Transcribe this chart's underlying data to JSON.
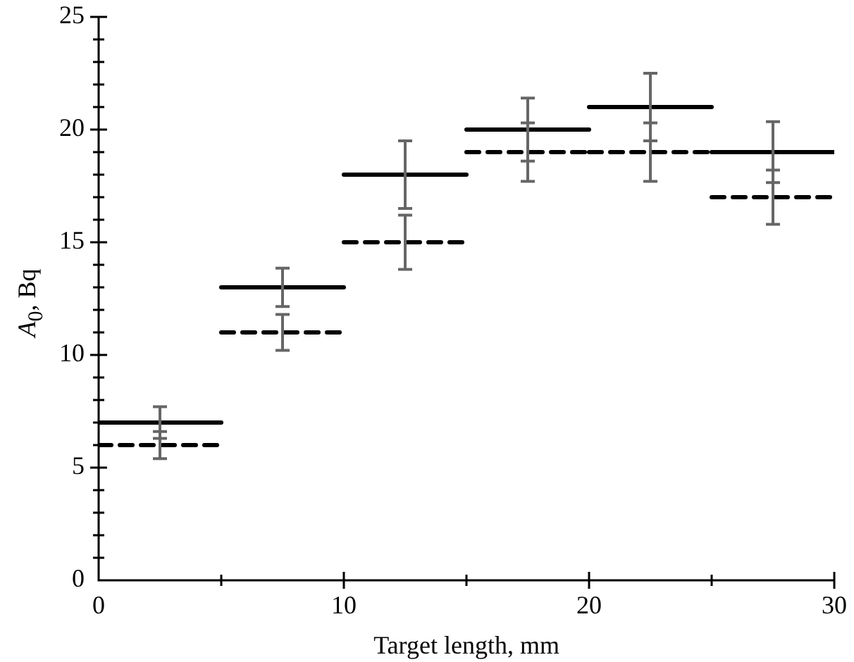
{
  "chart_data": {
    "type": "line",
    "xlabel": "Target length, mm",
    "ylabel": "A$_{0}$, Bq",
    "series": [
      {
        "color": "#000000",
        "line_style": "solid",
        "x": [
          0,
          2.5,
          5,
          null,
          5,
          7.5,
          10,
          null,
          10,
          12.5,
          15,
          null,
          15,
          17.5,
          20,
          null,
          20,
          22.5,
          25,
          null,
          25,
          27.5,
          30
        ],
        "values": [
          7,
          7,
          7,
          null,
          13,
          13,
          13,
          null,
          18,
          18,
          18,
          null,
          20,
          20,
          20,
          null,
          21,
          21,
          21,
          null,
          19,
          19,
          19
        ],
        "errors": [
          null,
          0.7,
          null,
          null,
          null,
          0.85,
          null,
          null,
          null,
          1.5,
          null,
          null,
          null,
          1.4,
          null,
          null,
          null,
          1.5,
          null,
          null,
          null,
          1.35,
          null
        ]
      },
      {
        "color": "#000000",
        "line_style": "dashed",
        "x": [
          0,
          2.5,
          5,
          null,
          5,
          7.5,
          10,
          null,
          10,
          12.5,
          15,
          null,
          15,
          17.5,
          20,
          null,
          20,
          22.5,
          25,
          null,
          25,
          27.5,
          30
        ],
        "values": [
          6,
          6,
          6,
          null,
          11,
          11,
          11,
          null,
          15,
          15,
          15,
          null,
          19,
          19,
          19,
          null,
          19,
          19,
          19,
          null,
          17,
          17,
          17
        ],
        "errors": [
          null,
          0.6,
          null,
          null,
          null,
          0.8,
          null,
          null,
          null,
          1.2,
          null,
          null,
          null,
          1.3,
          null,
          null,
          null,
          1.3,
          null,
          null,
          null,
          1.2,
          null
        ]
      }
    ],
    "xlim": [
      0,
      30
    ],
    "xticks": [
      0,
      {
        "value": 5,
        "label": null
      },
      10,
      {
        "value": 15,
        "label": null
      },
      20,
      {
        "value": 25,
        "label": null
      },
      30
    ],
    "ylim": [
      0,
      25
    ],
    "yticks": [
      0,
      {
        "value": 1,
        "label": null
      },
      {
        "value": 2,
        "label": null
      },
      {
        "value": 3,
        "label": null
      },
      {
        "value": 4,
        "label": null
      },
      5,
      {
        "value": 6,
        "label": null
      },
      {
        "value": 7,
        "label": null
      },
      {
        "value": 8,
        "label": null
      },
      {
        "value": 9,
        "label": null
      },
      10,
      {
        "value": 11,
        "label": null
      },
      {
        "value": 12,
        "label": null
      },
      {
        "value": 13,
        "label": null
      },
      {
        "value": 14,
        "label": null
      },
      15,
      {
        "value": 16,
        "label": null
      },
      {
        "value": 17,
        "label": null
      },
      {
        "value": 18,
        "label": null
      },
      {
        "value": 19,
        "label": null
      },
      20,
      {
        "value": 21,
        "label": null
      },
      {
        "value": 22,
        "label": null
      },
      {
        "value": 23,
        "label": null
      },
      {
        "value": 24,
        "label": null
      },
      25
    ],
    "grid": false,
    "legend": false
  }
}
